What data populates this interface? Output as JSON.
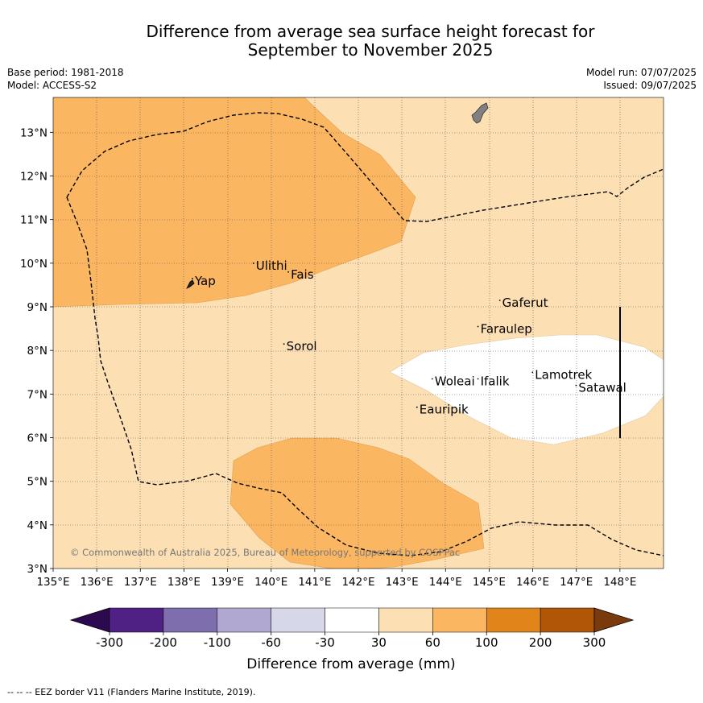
{
  "title_line1": "Difference from average sea surface height forecast for",
  "title_line2": "September to November 2025",
  "base_period": "Base period: 1981-2018",
  "model": "Model: ACCESS-S2",
  "model_run": "Model run: 07/07/2025",
  "issued": "Issued: 09/07/2025",
  "copyright": "© Commonwealth of Australia 2025, Bureau of Meteorology, supported by COSPPac",
  "footnote": "-- -- -- EEZ border V11 (Flanders Marine Institute, 2019).",
  "map": {
    "lon_range": [
      135,
      149
    ],
    "lat_range": [
      3,
      13.8
    ],
    "lon_ticks": [
      "135°E",
      "136°E",
      "137°E",
      "138°E",
      "139°E",
      "140°E",
      "141°E",
      "142°E",
      "143°E",
      "144°E",
      "145°E",
      "146°E",
      "147°E",
      "148°E"
    ],
    "lat_ticks": [
      "3°N",
      "4°N",
      "5°N",
      "6°N",
      "7°N",
      "8°N",
      "9°N",
      "10°N",
      "11°N",
      "12°N",
      "13°N"
    ],
    "places": [
      {
        "name": "Yap",
        "lon": 138.25,
        "lat": 9.5
      },
      {
        "name": "Ulithi",
        "lon": 139.65,
        "lat": 9.85
      },
      {
        "name": "Fais",
        "lon": 140.45,
        "lat": 9.65
      },
      {
        "name": "Gaferut",
        "lon": 145.3,
        "lat": 9.0
      },
      {
        "name": "Faraulep",
        "lon": 144.8,
        "lat": 8.4
      },
      {
        "name": "Sorol",
        "lon": 140.35,
        "lat": 8.0
      },
      {
        "name": "Lamotrek",
        "lon": 146.05,
        "lat": 7.35
      },
      {
        "name": "Woleai",
        "lon": 143.75,
        "lat": 7.2
      },
      {
        "name": "Ifalik",
        "lon": 144.8,
        "lat": 7.2
      },
      {
        "name": "Satawal",
        "lon": 147.05,
        "lat": 7.05
      },
      {
        "name": "Eauripik",
        "lon": 143.4,
        "lat": 6.55
      }
    ]
  },
  "colorbar": {
    "label": "Difference from average (mm)",
    "ticks": [
      "-300",
      "-200",
      "-100",
      "-60",
      "-30",
      "30",
      "60",
      "100",
      "200",
      "300"
    ],
    "colors": [
      "#2d0a4f",
      "#4f2184",
      "#7e6ead",
      "#b0a8d1",
      "#d7d7ea",
      "#ffffff",
      "#fddfb4",
      "#fbb662",
      "#e1851a",
      "#b15507",
      "#7a3b0c"
    ]
  }
}
